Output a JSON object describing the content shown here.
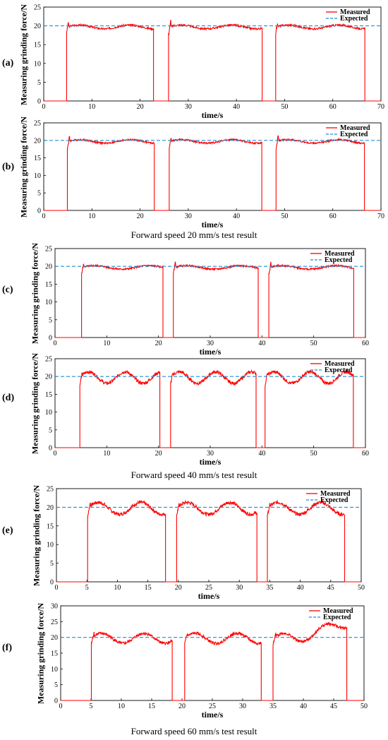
{
  "captions": [
    "Forward speed 20 mm/s test result",
    "Forward speed 40 mm/s test result",
    "Forward speed 60 mm/s test result"
  ],
  "chart_data": [
    {
      "panel_label": "(a)",
      "type": "line",
      "xlabel": "time/s",
      "ylabel": "Measuring grinding force/N",
      "xlim": [
        0,
        70
      ],
      "ylim": [
        0,
        25
      ],
      "xticks": [
        0,
        10,
        20,
        30,
        40,
        50,
        60,
        70
      ],
      "yticks": [
        0,
        5,
        10,
        15,
        20,
        25
      ],
      "grid": false,
      "legend_position": "top-right",
      "expected": 20,
      "segments": [
        [
          4.7,
          22.8
        ],
        [
          25.9,
          45.4
        ],
        [
          48.1,
          66.7
        ]
      ],
      "series": [
        {
          "name": "Measured",
          "color": "#ff0000",
          "style": "solid"
        },
        {
          "name": "Expected",
          "color": "#1f8fd8",
          "style": "dashed",
          "value": 20
        }
      ]
    },
    {
      "panel_label": "(b)",
      "type": "line",
      "xlabel": "time/s",
      "ylabel": "Measuring grinding force/N",
      "xlim": [
        0,
        70
      ],
      "ylim": [
        0,
        25
      ],
      "xticks": [
        0,
        10,
        20,
        30,
        40,
        50,
        60,
        70
      ],
      "yticks": [
        0,
        5,
        10,
        15,
        20,
        25
      ],
      "grid": false,
      "legend_position": "top-right",
      "expected": 20,
      "segments": [
        [
          4.9,
          23.0
        ],
        [
          26.0,
          45.3
        ],
        [
          48.2,
          66.6
        ]
      ],
      "series": [
        {
          "name": "Measured",
          "color": "#ff0000",
          "style": "solid"
        },
        {
          "name": "Expected",
          "color": "#1f8fd8",
          "style": "dashed",
          "value": 20
        }
      ]
    },
    {
      "panel_label": "(c)",
      "type": "line",
      "xlabel": "time/s",
      "ylabel": "Measuring grinding force/N",
      "xlim": [
        0,
        60
      ],
      "ylim": [
        0,
        25
      ],
      "xticks": [
        0,
        10,
        20,
        30,
        40,
        50,
        60
      ],
      "yticks": [
        0,
        5,
        10,
        15,
        20,
        25
      ],
      "grid": false,
      "legend_position": "top-right",
      "expected": 20,
      "segments": [
        [
          5.1,
          20.9
        ],
        [
          22.8,
          39.3
        ],
        [
          41.3,
          57.8
        ]
      ],
      "series": [
        {
          "name": "Measured",
          "color": "#ff0000",
          "style": "solid"
        },
        {
          "name": "Expected",
          "color": "#1f8fd8",
          "style": "dashed",
          "value": 20
        }
      ]
    },
    {
      "panel_label": "(d)",
      "type": "line",
      "xlabel": "time/s",
      "ylabel": "Measuring grinding force/N",
      "xlim": [
        0,
        60
      ],
      "ylim": [
        0,
        25
      ],
      "xticks": [
        0,
        10,
        20,
        30,
        40,
        50,
        60
      ],
      "yticks": [
        0,
        5,
        10,
        15,
        20,
        25
      ],
      "grid": false,
      "legend_position": "top-right",
      "expected": 20,
      "segments": [
        [
          4.8,
          20.3
        ],
        [
          22.3,
          38.9
        ],
        [
          40.6,
          57.7
        ]
      ],
      "series": [
        {
          "name": "Measured",
          "color": "#ff0000",
          "style": "solid"
        },
        {
          "name": "Expected",
          "color": "#1f8fd8",
          "style": "dashed",
          "value": 20
        }
      ]
    },
    {
      "panel_label": "(e)",
      "type": "line",
      "xlabel": "time/s",
      "ylabel": "Measuring grinding force/N",
      "xlim": [
        0,
        50
      ],
      "ylim": [
        0,
        25
      ],
      "xticks": [
        0,
        5,
        10,
        15,
        20,
        25,
        30,
        35,
        40,
        45,
        50
      ],
      "yticks": [
        0,
        5,
        10,
        15,
        20,
        25
      ],
      "grid": false,
      "legend_position": "top-right",
      "expected": 20,
      "segments": [
        [
          5.1,
          17.9
        ],
        [
          19.7,
          32.9
        ],
        [
          34.6,
          47.3
        ]
      ],
      "series": [
        {
          "name": "Measured",
          "color": "#ff0000",
          "style": "solid"
        },
        {
          "name": "Expected",
          "color": "#1f8fd8",
          "style": "dashed",
          "value": 20
        }
      ]
    },
    {
      "panel_label": "(f)",
      "type": "line",
      "xlabel": "time/s",
      "ylabel": "Measuring grinding force/N",
      "xlim": [
        0,
        50
      ],
      "ylim": [
        0,
        30
      ],
      "xticks": [
        0,
        5,
        10,
        15,
        20,
        25,
        30,
        35,
        40,
        45,
        50
      ],
      "yticks": [
        0,
        5,
        10,
        15,
        20,
        25,
        30
      ],
      "grid": false,
      "legend_position": "top-right",
      "expected": 20,
      "segments": [
        [
          5.0,
          18.4
        ],
        [
          20.4,
          33.1
        ],
        [
          35.0,
          47.2
        ]
      ],
      "series": [
        {
          "name": "Measured",
          "color": "#ff0000",
          "style": "solid"
        },
        {
          "name": "Expected",
          "color": "#1f8fd8",
          "style": "dashed",
          "value": 20
        }
      ]
    }
  ]
}
